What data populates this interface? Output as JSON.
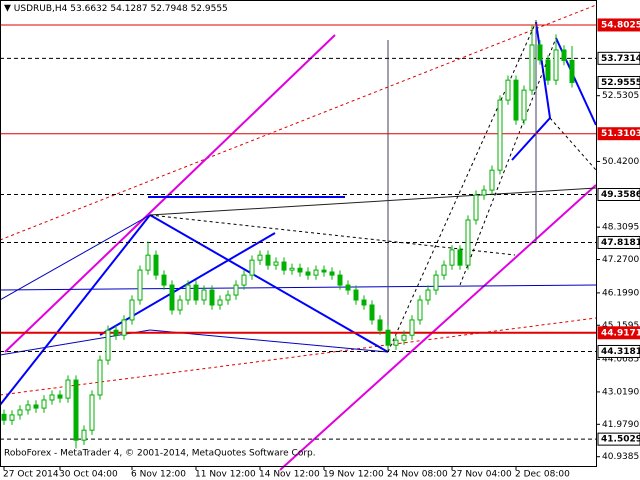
{
  "chart_data": {
    "type": "candlestick",
    "symbol": "USDRUB,H4",
    "header_values": [
      53.6632,
      54.1287,
      52.7948,
      52.9555
    ],
    "footer": "RoboForex - MetaTrader 4, © 2001-2014, MetaQuotes Software Corp.",
    "categories": [
      "27 Oct 2014",
      null,
      null,
      null,
      null,
      null,
      null,
      "30 Oct 04:00",
      null,
      null,
      null,
      null,
      null,
      null,
      null,
      null,
      "6 Nov 12:00",
      null,
      null,
      null,
      null,
      null,
      null,
      null,
      "11 Nov 12:00",
      null,
      null,
      null,
      null,
      null,
      null,
      null,
      "14 Nov 12:00",
      null,
      null,
      null,
      null,
      null,
      null,
      null,
      "19 Nov 12:00",
      null,
      null,
      null,
      null,
      null,
      null,
      null,
      "24 Nov 08:00",
      null,
      null,
      null,
      null,
      null,
      null,
      null,
      "27 Nov 04:00",
      null,
      null,
      null,
      null,
      null,
      null,
      null,
      "2 Dec 08:00",
      null,
      null,
      null,
      null,
      null,
      null,
      null
    ],
    "open": [
      42.3,
      42.11,
      42.28,
      42.44,
      42.6,
      42.5,
      42.76,
      42.92,
      42.82,
      43.4,
      41.47,
      41.79,
      42.92,
      44.04,
      45.0,
      44.84,
      45.33,
      45.97,
      46.93,
      47.41,
      46.77,
      46.45,
      45.65,
      45.97,
      46.45,
      45.97,
      46.29,
      45.81,
      45.97,
      46.13,
      46.45,
      46.77,
      47.25,
      47.41,
      47.09,
      47.19,
      46.93,
      46.99,
      46.87,
      46.77,
      46.93,
      46.87,
      46.77,
      46.45,
      46.29,
      45.97,
      45.81,
      45.33,
      45.0,
      44.52,
      44.68,
      44.84,
      45.33,
      45.97,
      46.29,
      46.77,
      47.09,
      47.58,
      47.09,
      48.54,
      49.34,
      49.5,
      50.14,
      52.39,
      53.03,
      51.75,
      52.71,
      54.16,
      53.68,
      53.03,
      54.0,
      53.6632
    ],
    "high": [
      42.45,
      42.43,
      42.59,
      42.75,
      42.75,
      42.91,
      43.07,
      43.07,
      43.55,
      43.55,
      41.94,
      43.07,
      44.19,
      45.15,
      45.15,
      45.48,
      46.12,
      47.08,
      47.85,
      47.56,
      46.92,
      46.6,
      46.12,
      46.6,
      46.6,
      46.44,
      46.44,
      46.12,
      46.28,
      46.6,
      46.92,
      47.4,
      47.56,
      47.56,
      47.34,
      47.34,
      47.14,
      47.14,
      47.02,
      47.08,
      47.08,
      47.02,
      46.92,
      46.6,
      46.44,
      46.12,
      45.96,
      45.48,
      45.15,
      44.83,
      44.99,
      45.48,
      46.12,
      46.44,
      46.92,
      47.24,
      47.73,
      47.73,
      48.69,
      49.49,
      49.65,
      50.29,
      52.54,
      53.18,
      53.18,
      52.86,
      54.8025,
      54.31,
      53.83,
      54.5,
      54.15,
      54.1287
    ],
    "low": [
      41.96,
      41.96,
      42.13,
      42.29,
      42.35,
      42.35,
      42.61,
      42.67,
      42.67,
      41.2,
      41.32,
      41.64,
      42.77,
      43.89,
      44.69,
      44.69,
      45.18,
      45.82,
      46.78,
      46.62,
      46.3,
      45.5,
      45.5,
      45.82,
      45.82,
      45.82,
      45.66,
      45.66,
      45.82,
      45.98,
      46.3,
      46.62,
      47.1,
      46.94,
      46.94,
      46.78,
      46.78,
      46.72,
      46.62,
      46.62,
      46.72,
      46.62,
      46.3,
      46.14,
      45.82,
      45.66,
      45.18,
      44.85,
      44.35,
      44.37,
      44.53,
      44.69,
      45.18,
      45.82,
      46.14,
      46.62,
      46.94,
      46.94,
      46.94,
      48.39,
      49.19,
      49.35,
      50.0,
      52.24,
      51.6,
      51.6,
      52.56,
      53.53,
      52.88,
      52.88,
      53.51,
      52.7948
    ],
    "close": [
      42.11,
      42.28,
      42.44,
      42.6,
      42.5,
      42.76,
      42.92,
      42.82,
      43.4,
      41.47,
      41.79,
      42.92,
      44.04,
      45.0,
      44.84,
      45.33,
      45.97,
      46.93,
      47.41,
      46.77,
      46.45,
      45.65,
      45.97,
      46.45,
      45.97,
      46.29,
      45.81,
      45.97,
      46.13,
      46.45,
      46.77,
      47.25,
      47.41,
      47.09,
      47.19,
      46.93,
      46.99,
      46.87,
      46.77,
      46.93,
      46.87,
      46.77,
      46.45,
      46.29,
      45.97,
      45.81,
      45.33,
      45.0,
      44.52,
      44.68,
      44.84,
      45.33,
      45.97,
      46.29,
      46.77,
      47.09,
      47.58,
      47.09,
      48.54,
      49.34,
      49.5,
      50.14,
      52.39,
      53.03,
      51.75,
      52.71,
      54.16,
      53.68,
      53.03,
      54.0,
      53.6632,
      52.9555
    ],
    "up_color": "#00b000",
    "down_color": "#00b000",
    "ylim": [
      40.64,
      55.54
    ],
    "yticks": [
      52.5305,
      {
        "value": 50.42,
        "label": "50.4200"
      },
      48.3095,
      {
        "value": 47.27,
        "label": "47.2700"
      },
      {
        "value": 46.199,
        "label": "46.1990"
      },
      45.1595,
      44.0685,
      {
        "value": 43.019,
        "label": "43.0190"
      },
      {
        "value": 41.979,
        "label": "41.9790"
      },
      40.9385
    ],
    "levels": [
      {
        "value": 54.8025,
        "style": "solid",
        "color": "#e00000"
      },
      {
        "value": 53.7314,
        "style": "dashed",
        "color": "#000000"
      },
      {
        "value": 51.3103,
        "style": "solid",
        "color": "#e00000"
      },
      {
        "value": 49.3586,
        "style": "dashed",
        "color": "#000000"
      },
      {
        "value": 47.8181,
        "style": "dashed",
        "color": "#000000"
      },
      {
        "value": 44.9171,
        "style": "bold",
        "color": "#e00000"
      },
      {
        "value": 44.3181,
        "style": "dashed",
        "color": "#000000"
      },
      {
        "value": 41.5029,
        "style": "dashed",
        "color": "#000000"
      }
    ],
    "bid": 52.9555
  }
}
